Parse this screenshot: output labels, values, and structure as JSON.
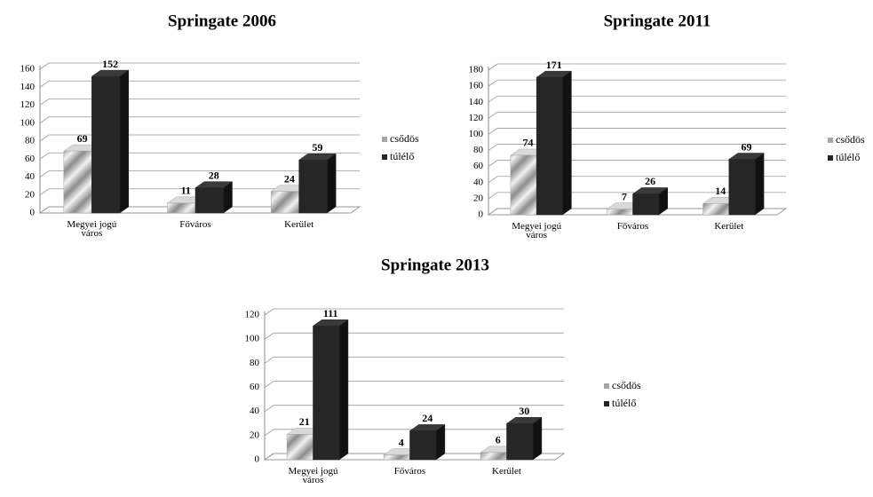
{
  "chart_data": [
    {
      "type": "bar3d",
      "title": "Springate 2006",
      "categories": [
        "Megyei jogú város",
        "Főváros",
        "Kerület"
      ],
      "series": [
        {
          "name": "csődös",
          "color": "#a6a6a6",
          "values": [
            69,
            11,
            24
          ]
        },
        {
          "name": "túlélő",
          "color": "#262626",
          "values": [
            152,
            28,
            59
          ]
        }
      ],
      "ylim": [
        0,
        160
      ],
      "yticks": [
        0,
        20,
        40,
        60,
        80,
        100,
        120,
        140,
        160
      ],
      "grid": true,
      "legend": "right"
    },
    {
      "type": "bar3d",
      "title": "Springate 2011",
      "categories": [
        "Megyei jogú város",
        "Főváros",
        "Kerület"
      ],
      "series": [
        {
          "name": "csődös",
          "color": "#a6a6a6",
          "values": [
            74,
            7,
            14
          ]
        },
        {
          "name": "túlélő",
          "color": "#262626",
          "values": [
            171,
            26,
            69
          ]
        }
      ],
      "ylim": [
        0,
        180
      ],
      "yticks": [
        0,
        20,
        40,
        60,
        80,
        100,
        120,
        140,
        160,
        180
      ],
      "grid": true,
      "legend": "right"
    },
    {
      "type": "bar3d",
      "title": "Springate 2013",
      "categories": [
        "Megyei jogú város",
        "Főváros",
        "Kerület"
      ],
      "series": [
        {
          "name": "csődös",
          "color": "#a6a6a6",
          "values": [
            21,
            4,
            6
          ]
        },
        {
          "name": "túlélő",
          "color": "#262626",
          "values": [
            111,
            24,
            30
          ]
        }
      ],
      "ylim": [
        0,
        120
      ],
      "yticks": [
        0,
        20,
        40,
        60,
        80,
        100,
        120
      ],
      "grid": true,
      "legend": "right"
    }
  ]
}
